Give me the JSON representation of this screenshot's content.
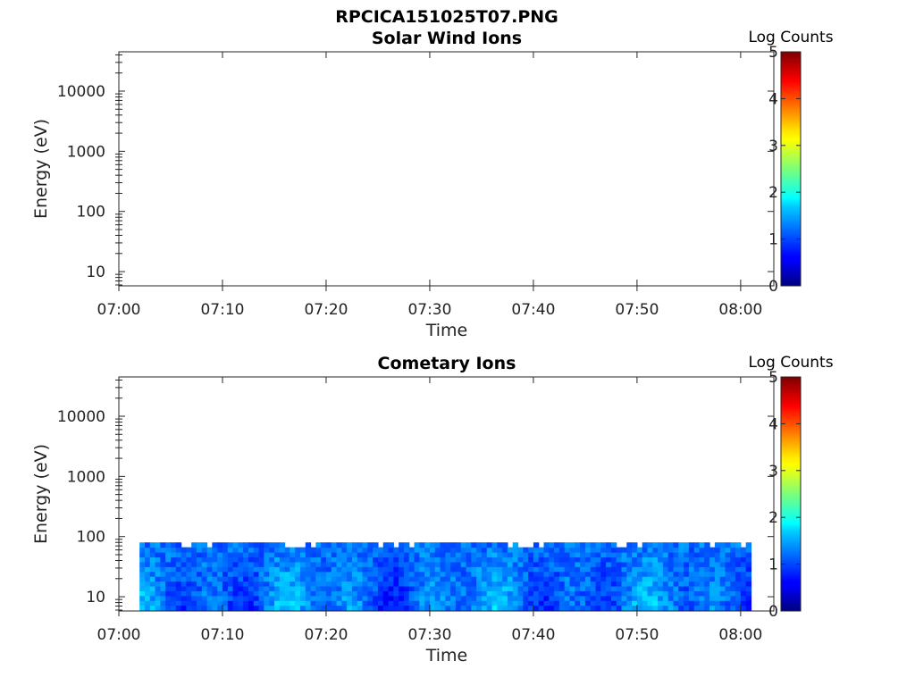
{
  "figure_title": "RPCICA151025T07.PNG",
  "colors": {
    "axis": "#262626",
    "background": "#ffffff",
    "colormap": "jet"
  },
  "chart_data": [
    {
      "type": "heatmap",
      "title": "Solar Wind Ions",
      "xlabel": "Time",
      "ylabel": "Energy (eV)",
      "x_ticks": [
        "07:00",
        "07:10",
        "07:20",
        "07:30",
        "07:40",
        "07:50",
        "08:00"
      ],
      "x_range_minutes": [
        0,
        63.2
      ],
      "y_scale": "log",
      "y_ticks": [
        "10",
        "100",
        "1000",
        "10000"
      ],
      "y_range": [
        5.8,
        45000
      ],
      "colorbar": {
        "label": "Log Counts",
        "ticks": [
          "0",
          "1",
          "2",
          "3",
          "4",
          "5"
        ],
        "range": [
          0,
          5
        ]
      },
      "data": []
    },
    {
      "type": "heatmap",
      "title": "Cometary Ions",
      "xlabel": "Time",
      "ylabel": "Energy (eV)",
      "x_ticks": [
        "07:00",
        "07:10",
        "07:20",
        "07:30",
        "07:40",
        "07:50",
        "08:00"
      ],
      "x_range_minutes": [
        0,
        63.2
      ],
      "y_scale": "log",
      "y_ticks": [
        "10",
        "100",
        "1000",
        "10000"
      ],
      "y_range": [
        5.8,
        45000
      ],
      "colorbar": {
        "label": "Log Counts",
        "ticks": [
          "0",
          "1",
          "2",
          "3",
          "4",
          "5"
        ],
        "range": [
          0,
          5
        ]
      },
      "data_extent": {
        "time_start": "07:02",
        "time_end": "08:01",
        "energy_min_eV": 6,
        "energy_max_eV": 80
      },
      "typical_log_counts": [
        0.5,
        2.0
      ]
    }
  ]
}
